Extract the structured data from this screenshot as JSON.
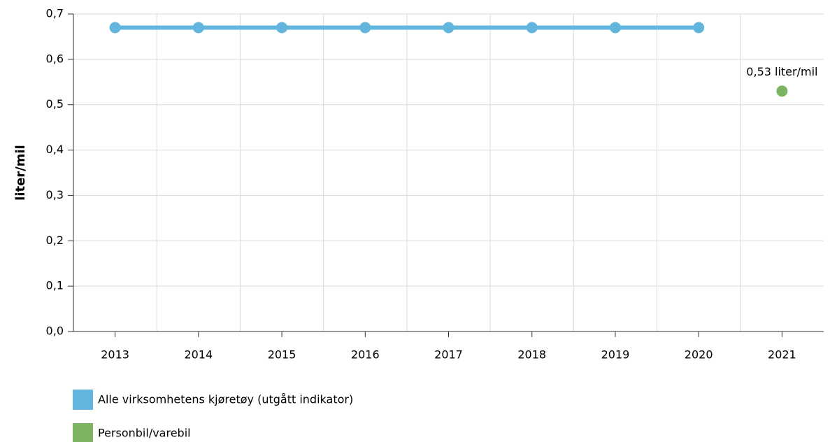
{
  "chart_data": {
    "type": "line",
    "y_label": "liter/mil",
    "categories": [
      "2013",
      "2014",
      "2015",
      "2016",
      "2017",
      "2018",
      "2019",
      "2020",
      "2021"
    ],
    "series": [
      {
        "name": "Alle virksomhetens kjøretøy (utgått indikator)",
        "color": "#62b5dc",
        "values": [
          0.67,
          0.67,
          0.67,
          0.67,
          0.67,
          0.67,
          0.67,
          0.67,
          null
        ]
      },
      {
        "name": "Personbil/varebil",
        "color": "#7db461",
        "values": [
          null,
          null,
          null,
          null,
          null,
          null,
          null,
          null,
          0.53
        ],
        "value_labels": [
          null,
          null,
          null,
          null,
          null,
          null,
          null,
          null,
          "0,53 liter/mil"
        ]
      }
    ],
    "ylim": [
      0,
      0.7
    ],
    "yticks": [
      {
        "value": 0,
        "label": "0,0"
      },
      {
        "value": 0.1,
        "label": "0,1"
      },
      {
        "value": 0.2,
        "label": "0,2"
      },
      {
        "value": 0.3,
        "label": "0,3"
      },
      {
        "value": 0.4,
        "label": "0,4"
      },
      {
        "value": 0.5,
        "label": "0,5"
      },
      {
        "value": 0.6,
        "label": "0,6"
      },
      {
        "value": 0.7,
        "label": "0,7"
      }
    ],
    "grid": true
  }
}
